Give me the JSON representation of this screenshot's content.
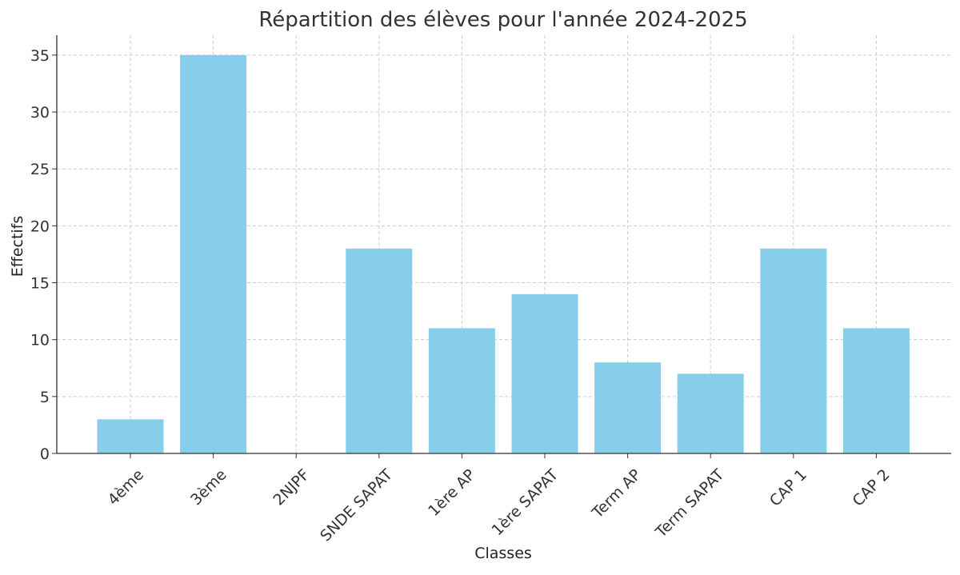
{
  "chart_data": {
    "type": "bar",
    "title": "Répartition des élèves pour l'année 2024-2025",
    "xlabel": "Classes",
    "ylabel": "Effectifs",
    "categories": [
      "4ème",
      "3ème",
      "2NJPF",
      "SNDE SAPAT",
      "1ère AP",
      "1ère SAPAT",
      "Term AP",
      "Term SAPAT",
      "CAP 1",
      "CAP 2"
    ],
    "values": [
      3,
      35,
      0,
      18,
      11,
      14,
      8,
      7,
      18,
      11
    ],
    "ylim": [
      0,
      36.75
    ],
    "yticks": [
      0,
      5,
      10,
      15,
      20,
      25,
      30,
      35
    ],
    "grid": true,
    "bar_color": "#87CEEB",
    "grid_color": "#cccccc",
    "text_color": "#333333"
  }
}
